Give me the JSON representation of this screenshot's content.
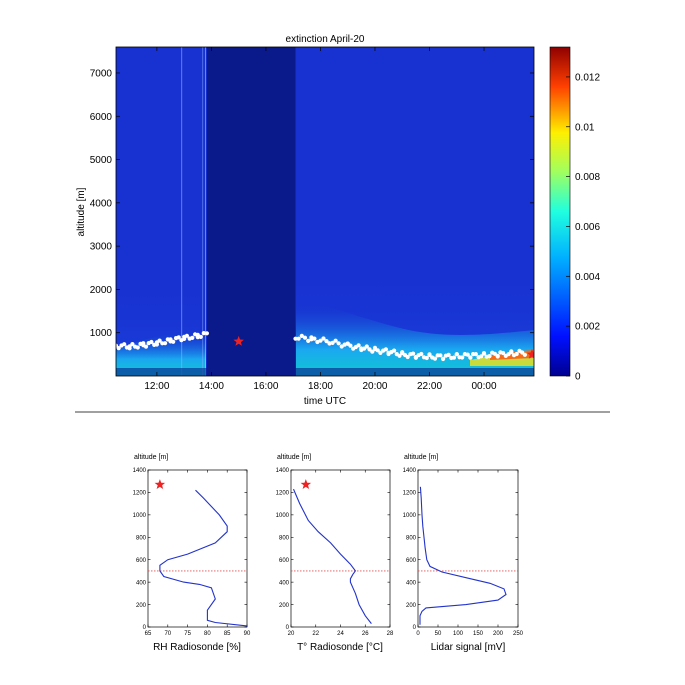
{
  "chart_data": [
    {
      "type": "heatmap",
      "title": "extinction April-20",
      "xlabel": "time UTC",
      "ylabel": "altitude [m]",
      "x_range": [
        "10:30",
        "01:50"
      ],
      "ylim": [
        0,
        7600
      ],
      "x_ticks": [
        "12:00",
        "14:00",
        "16:00",
        "18:00",
        "20:00",
        "22:00",
        "00:00"
      ],
      "y_ticks": [
        1000,
        2000,
        3000,
        4000,
        5000,
        6000,
        7000
      ],
      "colorbar": {
        "min": 0,
        "max": 0.0132,
        "ticks": [
          "0",
          "0.002",
          "0.004",
          "0.006",
          "0.008",
          "0.01",
          "0.012"
        ]
      },
      "no_data_interval": [
        "13:50",
        "17:05"
      ],
      "colors": {
        "background": "#1428c8",
        "no_data": "#0a1a8a",
        "boundary_markers": "#ffffff",
        "star": "#ee2222"
      },
      "boundary_layer_points": [
        {
          "t": "10:30",
          "alt": 700
        },
        {
          "t": "11:00",
          "alt": 680
        },
        {
          "t": "11:30",
          "alt": 720
        },
        {
          "t": "12:00",
          "alt": 760
        },
        {
          "t": "12:30",
          "alt": 820
        },
        {
          "t": "13:00",
          "alt": 880
        },
        {
          "t": "13:30",
          "alt": 930
        },
        {
          "t": "13:50",
          "alt": 960
        },
        {
          "t": "17:05",
          "alt": 900
        },
        {
          "t": "17:40",
          "alt": 850
        },
        {
          "t": "18:20",
          "alt": 800
        },
        {
          "t": "19:00",
          "alt": 700
        },
        {
          "t": "19:30",
          "alt": 650
        },
        {
          "t": "20:00",
          "alt": 600
        },
        {
          "t": "20:30",
          "alt": 560
        },
        {
          "t": "21:00",
          "alt": 500
        },
        {
          "t": "21:30",
          "alt": 470
        },
        {
          "t": "22:00",
          "alt": 450
        },
        {
          "t": "22:30",
          "alt": 440
        },
        {
          "t": "23:00",
          "alt": 460
        },
        {
          "t": "23:30",
          "alt": 470
        },
        {
          "t": "00:00",
          "alt": 480
        },
        {
          "t": "00:30",
          "alt": 500
        },
        {
          "t": "01:00",
          "alt": 520
        },
        {
          "t": "01:30",
          "alt": 540
        }
      ],
      "star_markers": [
        {
          "t": "15:00",
          "alt": 800
        },
        {
          "t": "01:50",
          "alt": 500
        }
      ]
    },
    {
      "type": "line",
      "xlabel": "RH Radiosonde [%]",
      "ylabel": "altitude [m]",
      "xlim": [
        65,
        90
      ],
      "ylim": [
        0,
        1400
      ],
      "x_ticks": [
        65,
        70,
        75,
        80,
        85,
        90
      ],
      "y_ticks": [
        0,
        200,
        400,
        600,
        800,
        1000,
        1200,
        1400
      ],
      "series": [
        {
          "x": [
            90,
            82,
            80,
            80,
            82,
            81,
            78,
            74,
            69,
            68,
            68,
            70,
            75,
            82,
            85,
            85,
            83,
            79,
            77
          ],
          "y": [
            10,
            40,
            60,
            150,
            250,
            350,
            380,
            400,
            450,
            500,
            550,
            600,
            650,
            750,
            850,
            900,
            1000,
            1150,
            1220
          ]
        }
      ],
      "reference_line_altitude": 500,
      "star_marker": {
        "x": 68,
        "y": 1270
      }
    },
    {
      "type": "line",
      "xlabel": "T° Radiosonde [°C]",
      "ylabel": "altitude [m]",
      "xlim": [
        20,
        28
      ],
      "ylim": [
        0,
        1400
      ],
      "x_ticks": [
        20,
        22,
        24,
        26,
        28
      ],
      "y_ticks": [
        0,
        200,
        400,
        600,
        800,
        1000,
        1200,
        1400
      ],
      "series": [
        {
          "x": [
            26.5,
            26.0,
            25.5,
            25.2,
            25.0,
            24.8,
            24.8,
            25.0,
            25.2,
            24.8,
            24.0,
            23.2,
            22.2,
            21.4,
            20.7,
            20.2
          ],
          "y": [
            30,
            100,
            200,
            300,
            350,
            400,
            430,
            470,
            500,
            560,
            650,
            750,
            850,
            950,
            1100,
            1230
          ]
        }
      ],
      "reference_line_altitude": 500,
      "star_marker": {
        "x": 21.2,
        "y": 1270
      }
    },
    {
      "type": "line",
      "xlabel": "Lidar signal [mV]",
      "ylabel": "altitude [m]",
      "xlim": [
        0,
        250
      ],
      "ylim": [
        0,
        1400
      ],
      "x_ticks": [
        0,
        50,
        100,
        150,
        200,
        250
      ],
      "y_ticks": [
        0,
        200,
        400,
        600,
        800,
        1000,
        1200,
        1400
      ],
      "series": [
        {
          "x": [
            5,
            5,
            10,
            20,
            120,
            200,
            220,
            215,
            180,
            120,
            60,
            30,
            22,
            18,
            15,
            12,
            10,
            8,
            6
          ],
          "y": [
            20,
            100,
            140,
            170,
            200,
            240,
            290,
            340,
            390,
            440,
            490,
            540,
            600,
            700,
            800,
            900,
            1000,
            1150,
            1250
          ]
        }
      ],
      "reference_line_altitude": 500
    }
  ]
}
